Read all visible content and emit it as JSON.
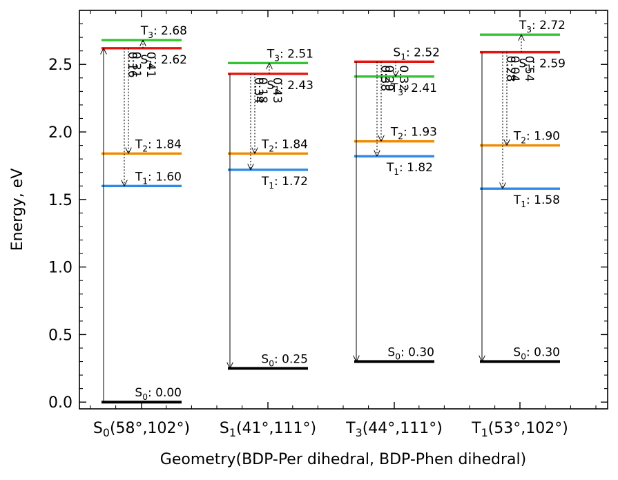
{
  "chart_data": {
    "type": "energy_level_diagram",
    "xlabel": "Geometry(BDP-Per dihedral, BDP-Phen dihedral)",
    "ylabel": "Energy, eV",
    "ylim": [
      -0.05,
      2.9
    ],
    "yticks": [
      0.0,
      0.5,
      1.0,
      1.5,
      2.0,
      2.5
    ],
    "ytick_labels": [
      "0.0",
      "0.5",
      "1.0",
      "1.5",
      "2.0",
      "2.5"
    ],
    "grid": false,
    "colors": {
      "S0": "#000000",
      "S1": "#e8120c",
      "T1": "#2e8ae6",
      "T2": "#f08a00",
      "T3": "#33c433"
    },
    "geometries": [
      {
        "state": "S",
        "state_sub": "0",
        "angles": "(58°,102°)",
        "levels": [
          {
            "state": "S",
            "sub": "0",
            "energy": 0.0,
            "label": "0.00"
          },
          {
            "state": "T",
            "sub": "1",
            "energy": 1.6,
            "label": "1.60"
          },
          {
            "state": "T",
            "sub": "2",
            "energy": 1.84,
            "label": "1.84"
          },
          {
            "state": "S",
            "sub": "1",
            "energy": 2.62,
            "label": "2.62"
          },
          {
            "state": "T",
            "sub": "3",
            "energy": 2.68,
            "label": "2.68"
          }
        ],
        "gaps": [
          {
            "from": "S1",
            "to": "T1",
            "value": "0.16"
          },
          {
            "from": "S1",
            "to": "T2",
            "value": "0.31"
          },
          {
            "from": "S1",
            "to": "T3",
            "value": "0.41"
          }
        ]
      },
      {
        "state": "S",
        "state_sub": "1",
        "angles": "(41°,111°)",
        "levels": [
          {
            "state": "S",
            "sub": "0",
            "energy": 0.25,
            "label": "0.25"
          },
          {
            "state": "T",
            "sub": "1",
            "energy": 1.72,
            "label": "1.72"
          },
          {
            "state": "T",
            "sub": "2",
            "energy": 1.84,
            "label": "1.84"
          },
          {
            "state": "S",
            "sub": "1",
            "energy": 2.43,
            "label": "2.43"
          },
          {
            "state": "T",
            "sub": "3",
            "energy": 2.51,
            "label": "2.51"
          }
        ],
        "gaps": [
          {
            "from": "S1",
            "to": "T1",
            "value": "0.34"
          },
          {
            "from": "S1",
            "to": "T2",
            "value": "0.18"
          },
          {
            "from": "S1",
            "to": "T3",
            "value": "0.43"
          }
        ]
      },
      {
        "state": "T",
        "state_sub": "3",
        "angles": "(44°,111°)",
        "levels": [
          {
            "state": "S",
            "sub": "0",
            "energy": 0.3,
            "label": "0.30"
          },
          {
            "state": "T",
            "sub": "1",
            "energy": 1.82,
            "label": "1.82"
          },
          {
            "state": "T",
            "sub": "2",
            "energy": 1.93,
            "label": "1.93"
          },
          {
            "state": "T",
            "sub": "3",
            "energy": 2.41,
            "label": "2.41"
          },
          {
            "state": "S",
            "sub": "1",
            "energy": 2.52,
            "label": "2.52"
          }
        ],
        "gaps": [
          {
            "from": "S1",
            "to": "T1",
            "value": "0.38"
          },
          {
            "from": "S1",
            "to": "T2",
            "value": "0.29"
          },
          {
            "from": "S1",
            "to": "T3",
            "value": "0.32"
          }
        ]
      },
      {
        "state": "T",
        "state_sub": "1",
        "angles": "(53°,102°)",
        "levels": [
          {
            "state": "S",
            "sub": "0",
            "energy": 0.3,
            "label": "0.30"
          },
          {
            "state": "T",
            "sub": "1",
            "energy": 1.58,
            "label": "1.58"
          },
          {
            "state": "T",
            "sub": "2",
            "energy": 1.9,
            "label": "1.90"
          },
          {
            "state": "S",
            "sub": "1",
            "energy": 2.59,
            "label": "2.59"
          },
          {
            "state": "T",
            "sub": "3",
            "energy": 2.72,
            "label": "2.72"
          }
        ],
        "gaps": [
          {
            "from": "S1",
            "to": "T1",
            "value": "0.28"
          },
          {
            "from": "S1",
            "to": "T2",
            "value": "0.04"
          },
          {
            "from": "S1",
            "to": "T3",
            "value": "0.54"
          }
        ]
      }
    ]
  }
}
